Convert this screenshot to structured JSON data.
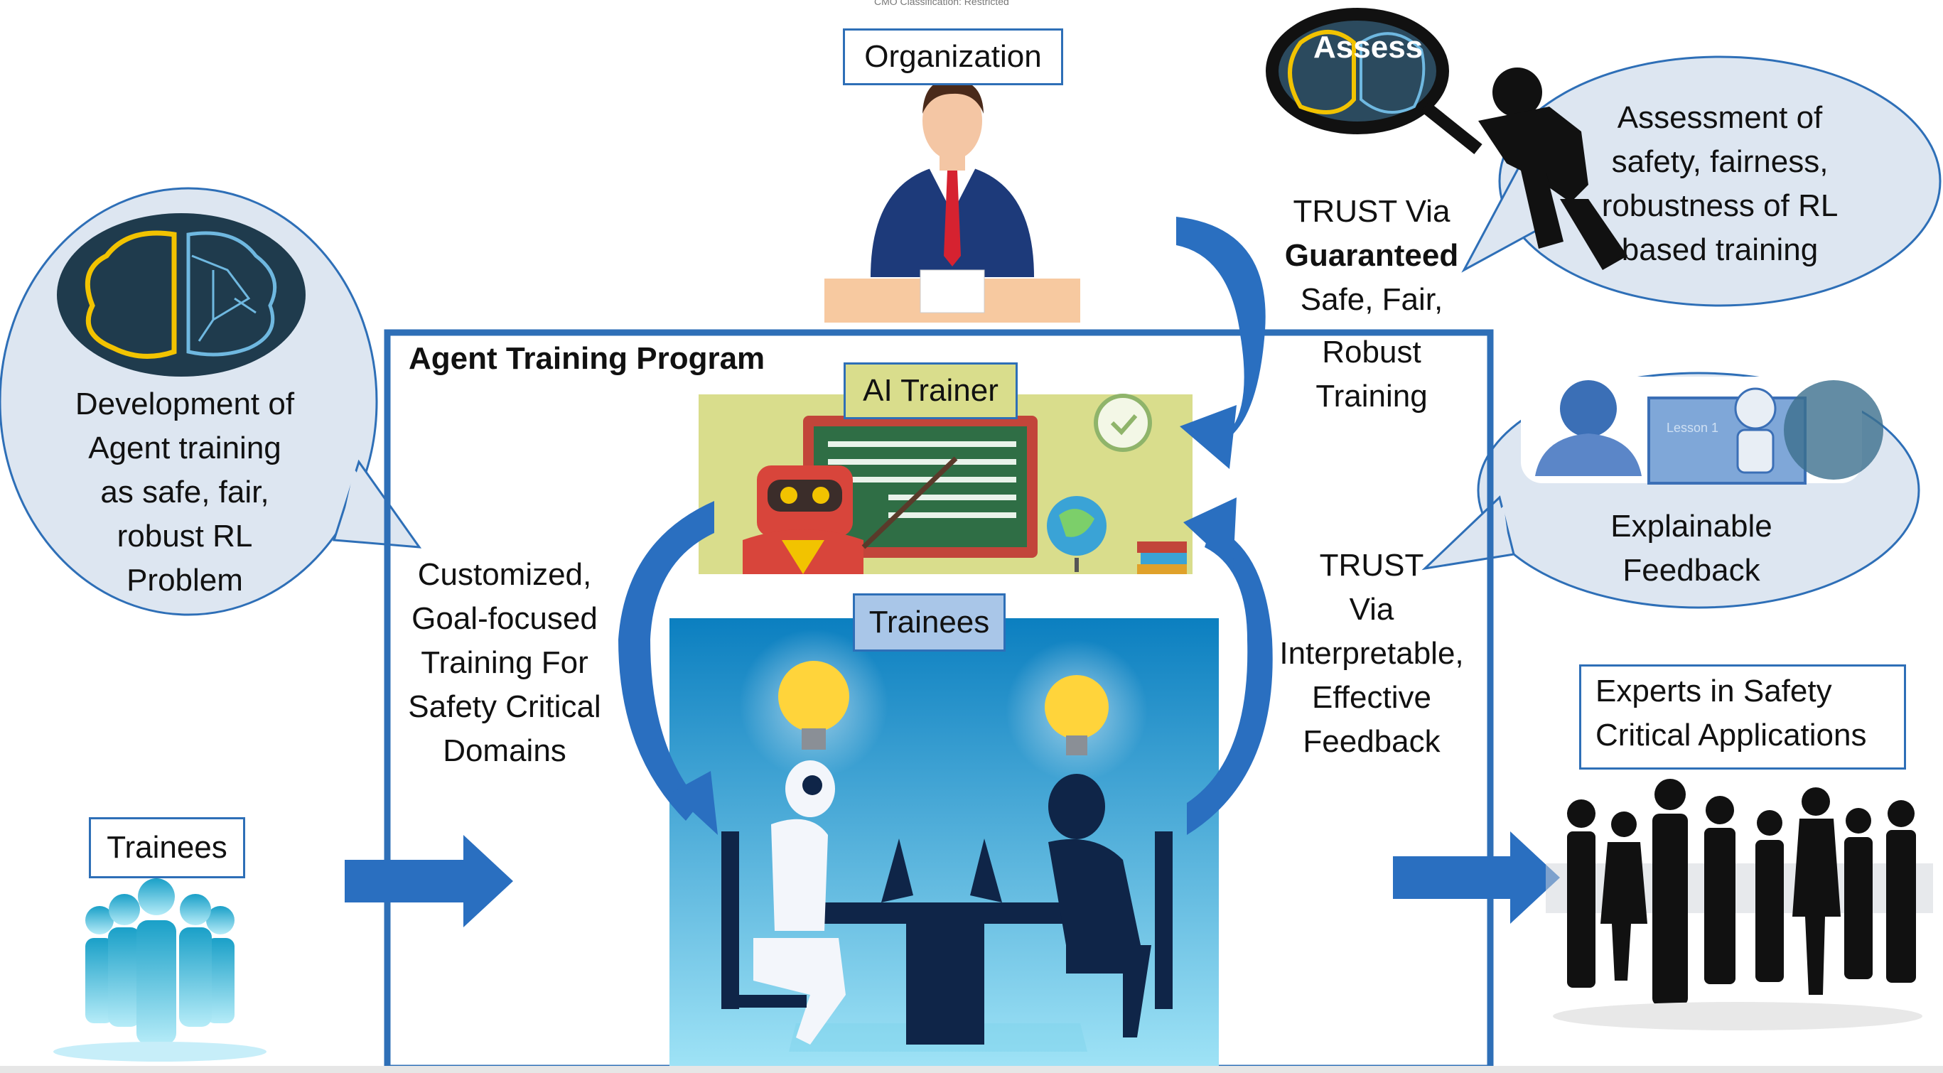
{
  "classification_note": "CMO Classification: Restricted",
  "organization": {
    "label": "Organization"
  },
  "assess": {
    "label": "Assess"
  },
  "assessment_bubble": {
    "lines": [
      "Assessment of",
      "safety, fairness,",
      "robustness of RL",
      "based training"
    ]
  },
  "trust_guaranteed": {
    "line1": "TRUST Via",
    "line2": "Guaranteed",
    "line3": "Safe, Fair,",
    "line4": "Robust",
    "line5": "Training"
  },
  "development_bubble": {
    "lines": [
      "Development of",
      "Agent training",
      "as safe, fair,",
      "robust RL",
      "Problem"
    ]
  },
  "program": {
    "title": "Agent Training Program"
  },
  "ai_trainer": {
    "label": "AI Trainer"
  },
  "trainees_inner": {
    "label": "Trainees"
  },
  "customized": {
    "lines": [
      "Customized,",
      "Goal-focused",
      "Training For",
      "Safety Critical",
      "Domains"
    ]
  },
  "explainable_bubble": {
    "lines": [
      "Explainable",
      "Feedback"
    ],
    "lesson": "Lesson 1"
  },
  "trust_interpretable": {
    "lines": [
      "TRUST",
      "Via",
      "Interpretable,",
      "Effective",
      "Feedback"
    ]
  },
  "trainees_left": {
    "label": "Trainees"
  },
  "experts": {
    "lines": [
      "Experts in Safety",
      "Critical Applications"
    ]
  },
  "colors": {
    "frame": "#2e6fb7",
    "arrow": "#2a6fc0",
    "bubble": "#dde6f1",
    "trainer_bg": "#d9dd8c",
    "trainees_bg": "#3aa3d6"
  }
}
